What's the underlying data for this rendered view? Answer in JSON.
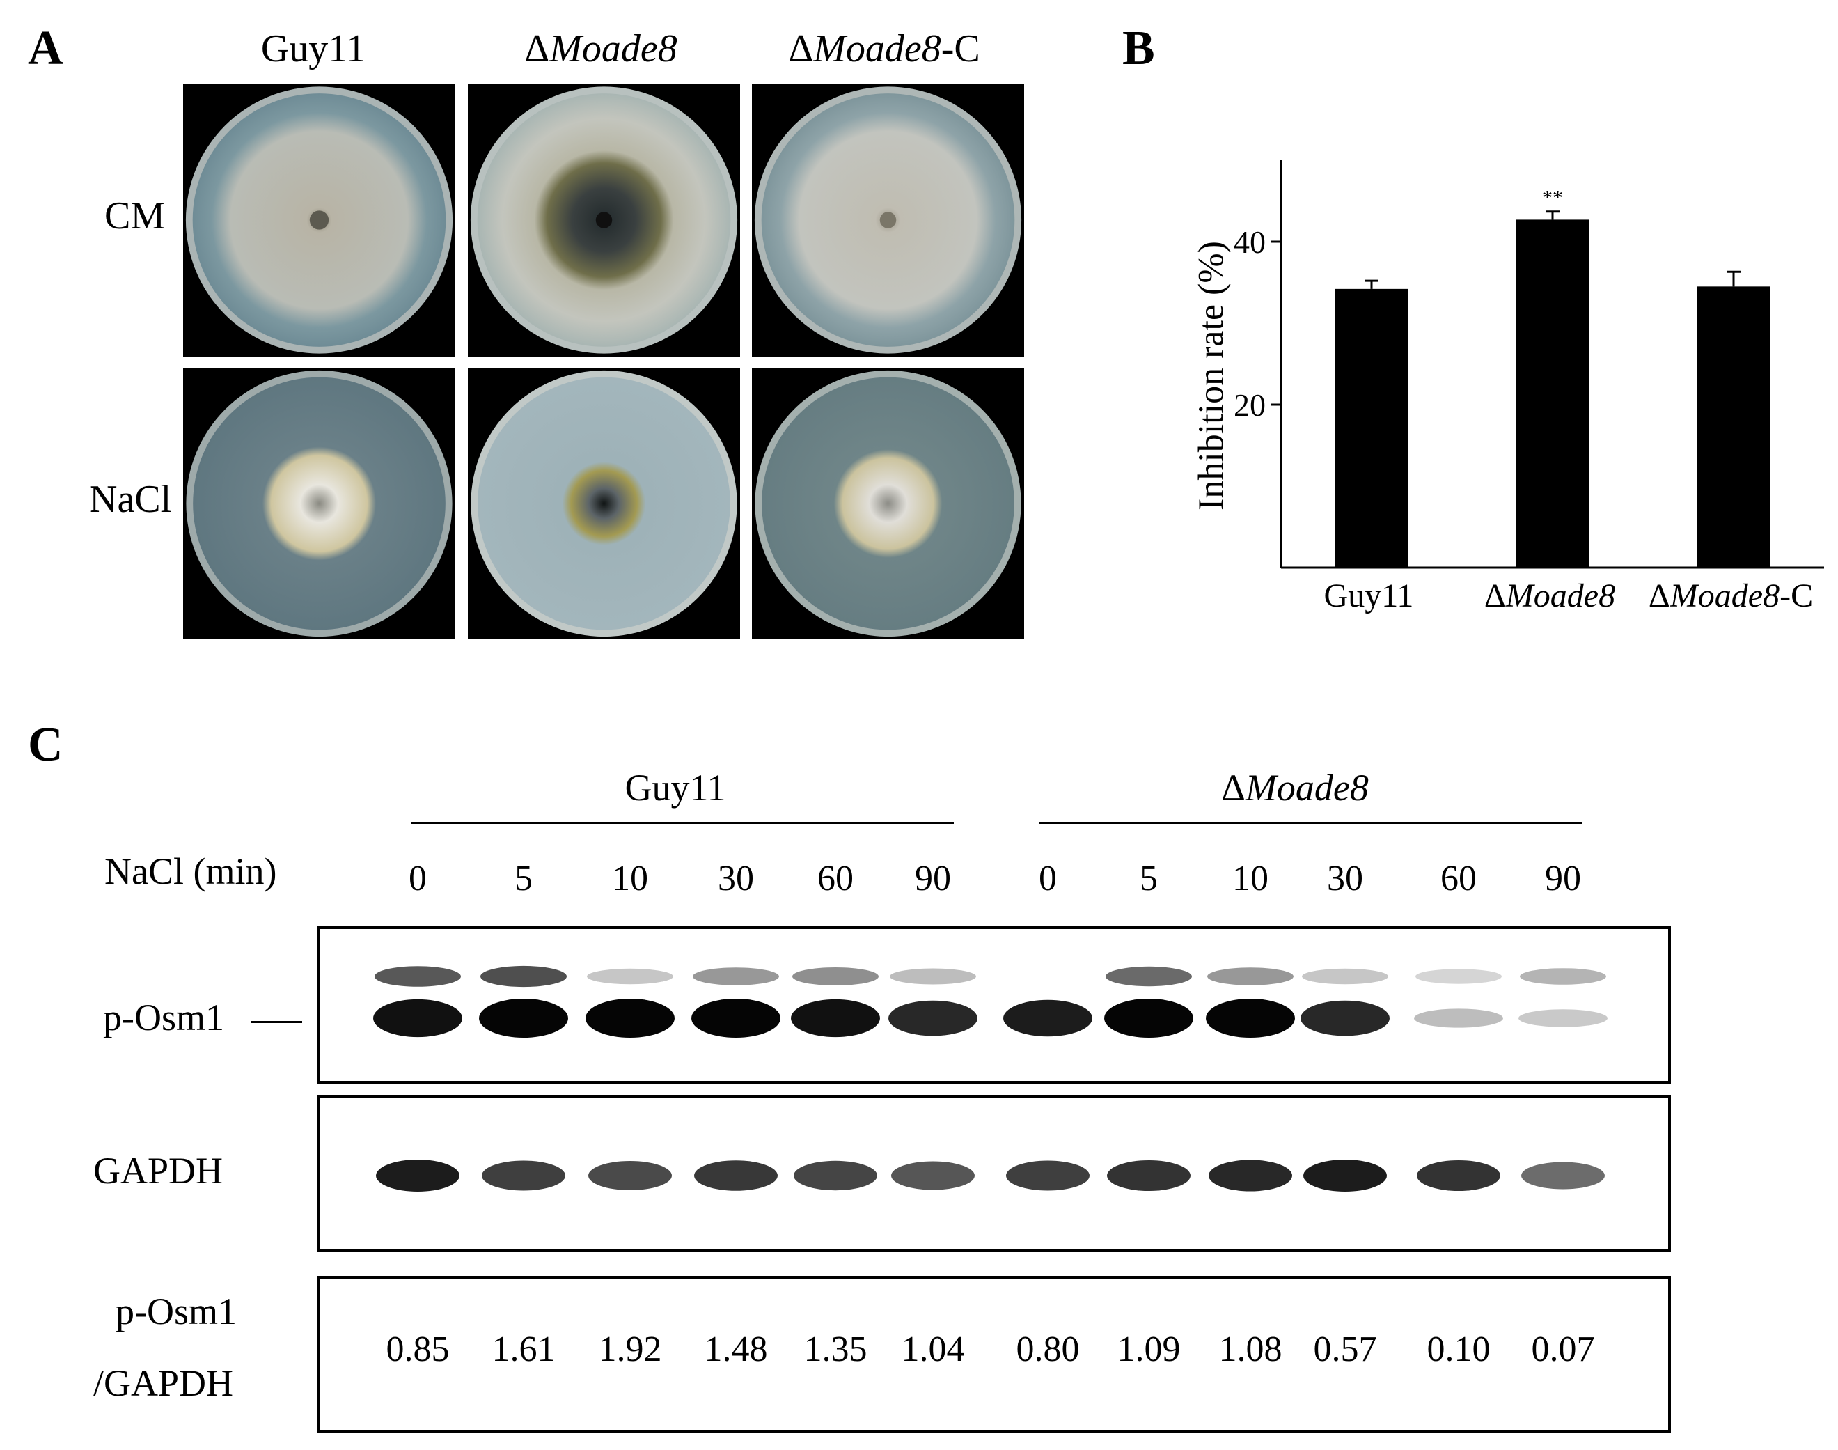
{
  "panels": {
    "a": "A",
    "b": "B",
    "c": "C"
  },
  "panel_a": {
    "columns": [
      {
        "prefix": "",
        "italic": "",
        "suffix": "Guy11"
      },
      {
        "prefix": "Δ",
        "italic": "Moade8",
        "suffix": ""
      },
      {
        "prefix": "Δ",
        "italic": "Moade8",
        "suffix": "-C"
      }
    ],
    "rows": [
      "CM",
      "NaCl"
    ]
  },
  "chart_data": {
    "type": "bar",
    "categories": [
      "Guy11",
      "ΔMoade8",
      "ΔMoade8-C"
    ],
    "values": [
      34.2,
      42.7,
      34.5
    ],
    "errors": [
      1.0,
      1.0,
      1.8
    ],
    "significance": [
      "",
      "**",
      ""
    ],
    "ylabel": "Inhibition rate (%)",
    "ylim": [
      0,
      50
    ],
    "yticks": [
      20,
      40
    ],
    "bar_color": "#000000"
  },
  "panel_b": {
    "xlabels": [
      {
        "prefix": "",
        "italic": "",
        "suffix": "Guy11"
      },
      {
        "prefix": "Δ",
        "italic": "Moade8",
        "suffix": ""
      },
      {
        "prefix": "Δ",
        "italic": "Moade8",
        "suffix": "-C"
      }
    ],
    "ylabel": "Inhibition rate (%)",
    "sig": "**",
    "yticks": [
      "20",
      "40"
    ]
  },
  "panel_c": {
    "group1": {
      "prefix": "",
      "italic": "",
      "suffix": "Guy11"
    },
    "group2": {
      "prefix": "Δ",
      "italic": "Moade8",
      "suffix": ""
    },
    "time_label": "NaCl (min)",
    "times": [
      "0",
      "5",
      "10",
      "30",
      "60",
      "90",
      "0",
      "5",
      "10",
      "30",
      "60",
      "90"
    ],
    "blot1_label": "p-Osm1",
    "blot2_label": "GAPDH",
    "ratio_label_1": "p-Osm1",
    "ratio_label_2": "/GAPDH",
    "ratios": [
      "0.85",
      "1.61",
      "1.92",
      "1.48",
      "1.35",
      "1.04",
      "0.80",
      "1.09",
      "1.08",
      "0.57",
      "0.10",
      "0.07"
    ],
    "posm1_upper": [
      0.8,
      0.85,
      0.2,
      0.45,
      0.5,
      0.25,
      0.0,
      0.7,
      0.45,
      0.2,
      0.12,
      0.3
    ],
    "posm1_lower": [
      0.95,
      1.0,
      1.0,
      1.0,
      0.95,
      0.85,
      0.9,
      1.0,
      1.0,
      0.85,
      0.2,
      0.15
    ],
    "gapdh": [
      0.9,
      0.75,
      0.7,
      0.78,
      0.72,
      0.65,
      0.75,
      0.8,
      0.85,
      0.9,
      0.8,
      0.55
    ]
  }
}
